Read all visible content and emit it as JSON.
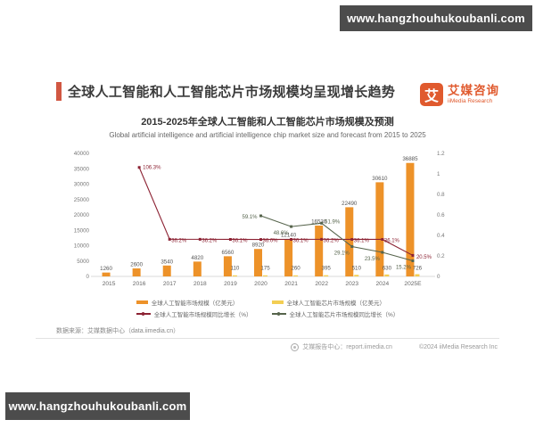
{
  "banners": {
    "top": "www.hangzhouhukoubanli.com",
    "bottom": "www.hangzhouhukoubanli.com"
  },
  "header": {
    "title": "全球人工智能和人工智能芯片市场规模均呈现增长趋势"
  },
  "logo": {
    "glyph": "艾",
    "name_cn": "艾媒咨询",
    "name_en": "iiMedia Research"
  },
  "chart_data": {
    "type": "bar",
    "title": "2015-2025年全球人工智能和人工智能芯片市场规模及预测",
    "subtitle": "Global artificial intelligence and artificial intelligence chip market size and forecast from 2015 to 2025",
    "categories": [
      "2015",
      "2016",
      "2017",
      "2018",
      "2019",
      "2020",
      "2021",
      "2022",
      "2023",
      "2024",
      "2025E"
    ],
    "series": [
      {
        "name": "全球人工智能市场规模（亿美元）",
        "kind": "bar",
        "axis": "left",
        "color": "#ED9229",
        "values": [
          1260,
          2600,
          3540,
          4820,
          6560,
          8920,
          12140,
          16530,
          22490,
          30610,
          36885
        ]
      },
      {
        "name": "全球人工智能芯片市场规模（亿美元）",
        "kind": "bar",
        "axis": "left",
        "color": "#F3CE53",
        "values": [
          null,
          null,
          null,
          null,
          110,
          175,
          260,
          395,
          510,
          630,
          726
        ]
      },
      {
        "name": "全球人工智能市场规模同比增长（%）",
        "kind": "line",
        "axis": "right",
        "color": "#8C2233",
        "values": [
          null,
          "106.3",
          "36.2",
          "36.2",
          "36.1",
          "36.0",
          "36.1",
          "36.2",
          "36.1",
          "36.1",
          "20.5"
        ]
      },
      {
        "name": "全球人工智能芯片市场规模同比增长（%）",
        "kind": "line",
        "axis": "right",
        "color": "#56644C",
        "values": [
          null,
          null,
          null,
          null,
          null,
          "59.1",
          "48.6",
          "51.9",
          "29.1",
          "23.5",
          "15.2"
        ]
      }
    ],
    "left_axis": {
      "min": 0,
      "max": 40000,
      "ticks": [
        "0",
        "5000",
        "10000",
        "15000",
        "20000",
        "25000",
        "30000",
        "35000",
        "40000"
      ]
    },
    "right_axis": {
      "min": 0,
      "max": 1.2,
      "ticks": [
        "0",
        "0.2",
        "0.4",
        "0.6",
        "0.8",
        "1",
        "1.2"
      ]
    },
    "grid": false,
    "legend_position": "bottom"
  },
  "footer": {
    "source": "数据来源：艾媒数据中心（data.iimedia.cn）",
    "report_center": "艾媒报告中心：report.iimedia.cn",
    "copyright": "©2024 iiMedia Research Inc"
  },
  "colors": {
    "accent_bar": "#D15742",
    "logo_orange": "#E05A2E",
    "banner_bg": "#4C4C4C"
  }
}
